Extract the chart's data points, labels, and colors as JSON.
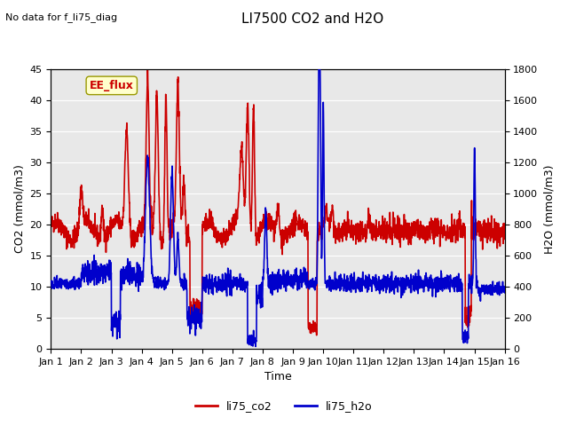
{
  "title": "LI7500 CO2 and H2O",
  "top_left_text": "No data for f_li75_diag",
  "annotation_text": "EE_flux",
  "xlabel": "Time",
  "ylabel_left": "CO2 (mmol/m3)",
  "ylabel_right": "H2O (mmol/m3)",
  "ylim_left": [
    0,
    45
  ],
  "ylim_right": [
    0,
    1800
  ],
  "yticks_left": [
    0,
    5,
    10,
    15,
    20,
    25,
    30,
    35,
    40,
    45
  ],
  "yticks_right": [
    0,
    200,
    400,
    600,
    800,
    1000,
    1200,
    1400,
    1600,
    1800
  ],
  "xtick_labels": [
    "Jan 1",
    "Jan 2",
    "Jan 3",
    "Jan 4",
    "Jan 5",
    "Jan 6",
    "Jan 7",
    "Jan 8",
    "Jan 9",
    "Jan 10",
    "Jan 11",
    "Jan 12",
    "Jan 13",
    "Jan 14",
    "Jan 15",
    "Jan 16"
  ],
  "co2_color": "#cc0000",
  "h2o_color": "#0000cc",
  "legend_labels": [
    "li75_co2",
    "li75_h2o"
  ],
  "background_color": "#ffffff",
  "plot_bg_color": "#e8e8e8",
  "grid_color": "#ffffff",
  "annotation_bg": "#ffffcc",
  "annotation_border": "#999900",
  "line_width": 1.2
}
